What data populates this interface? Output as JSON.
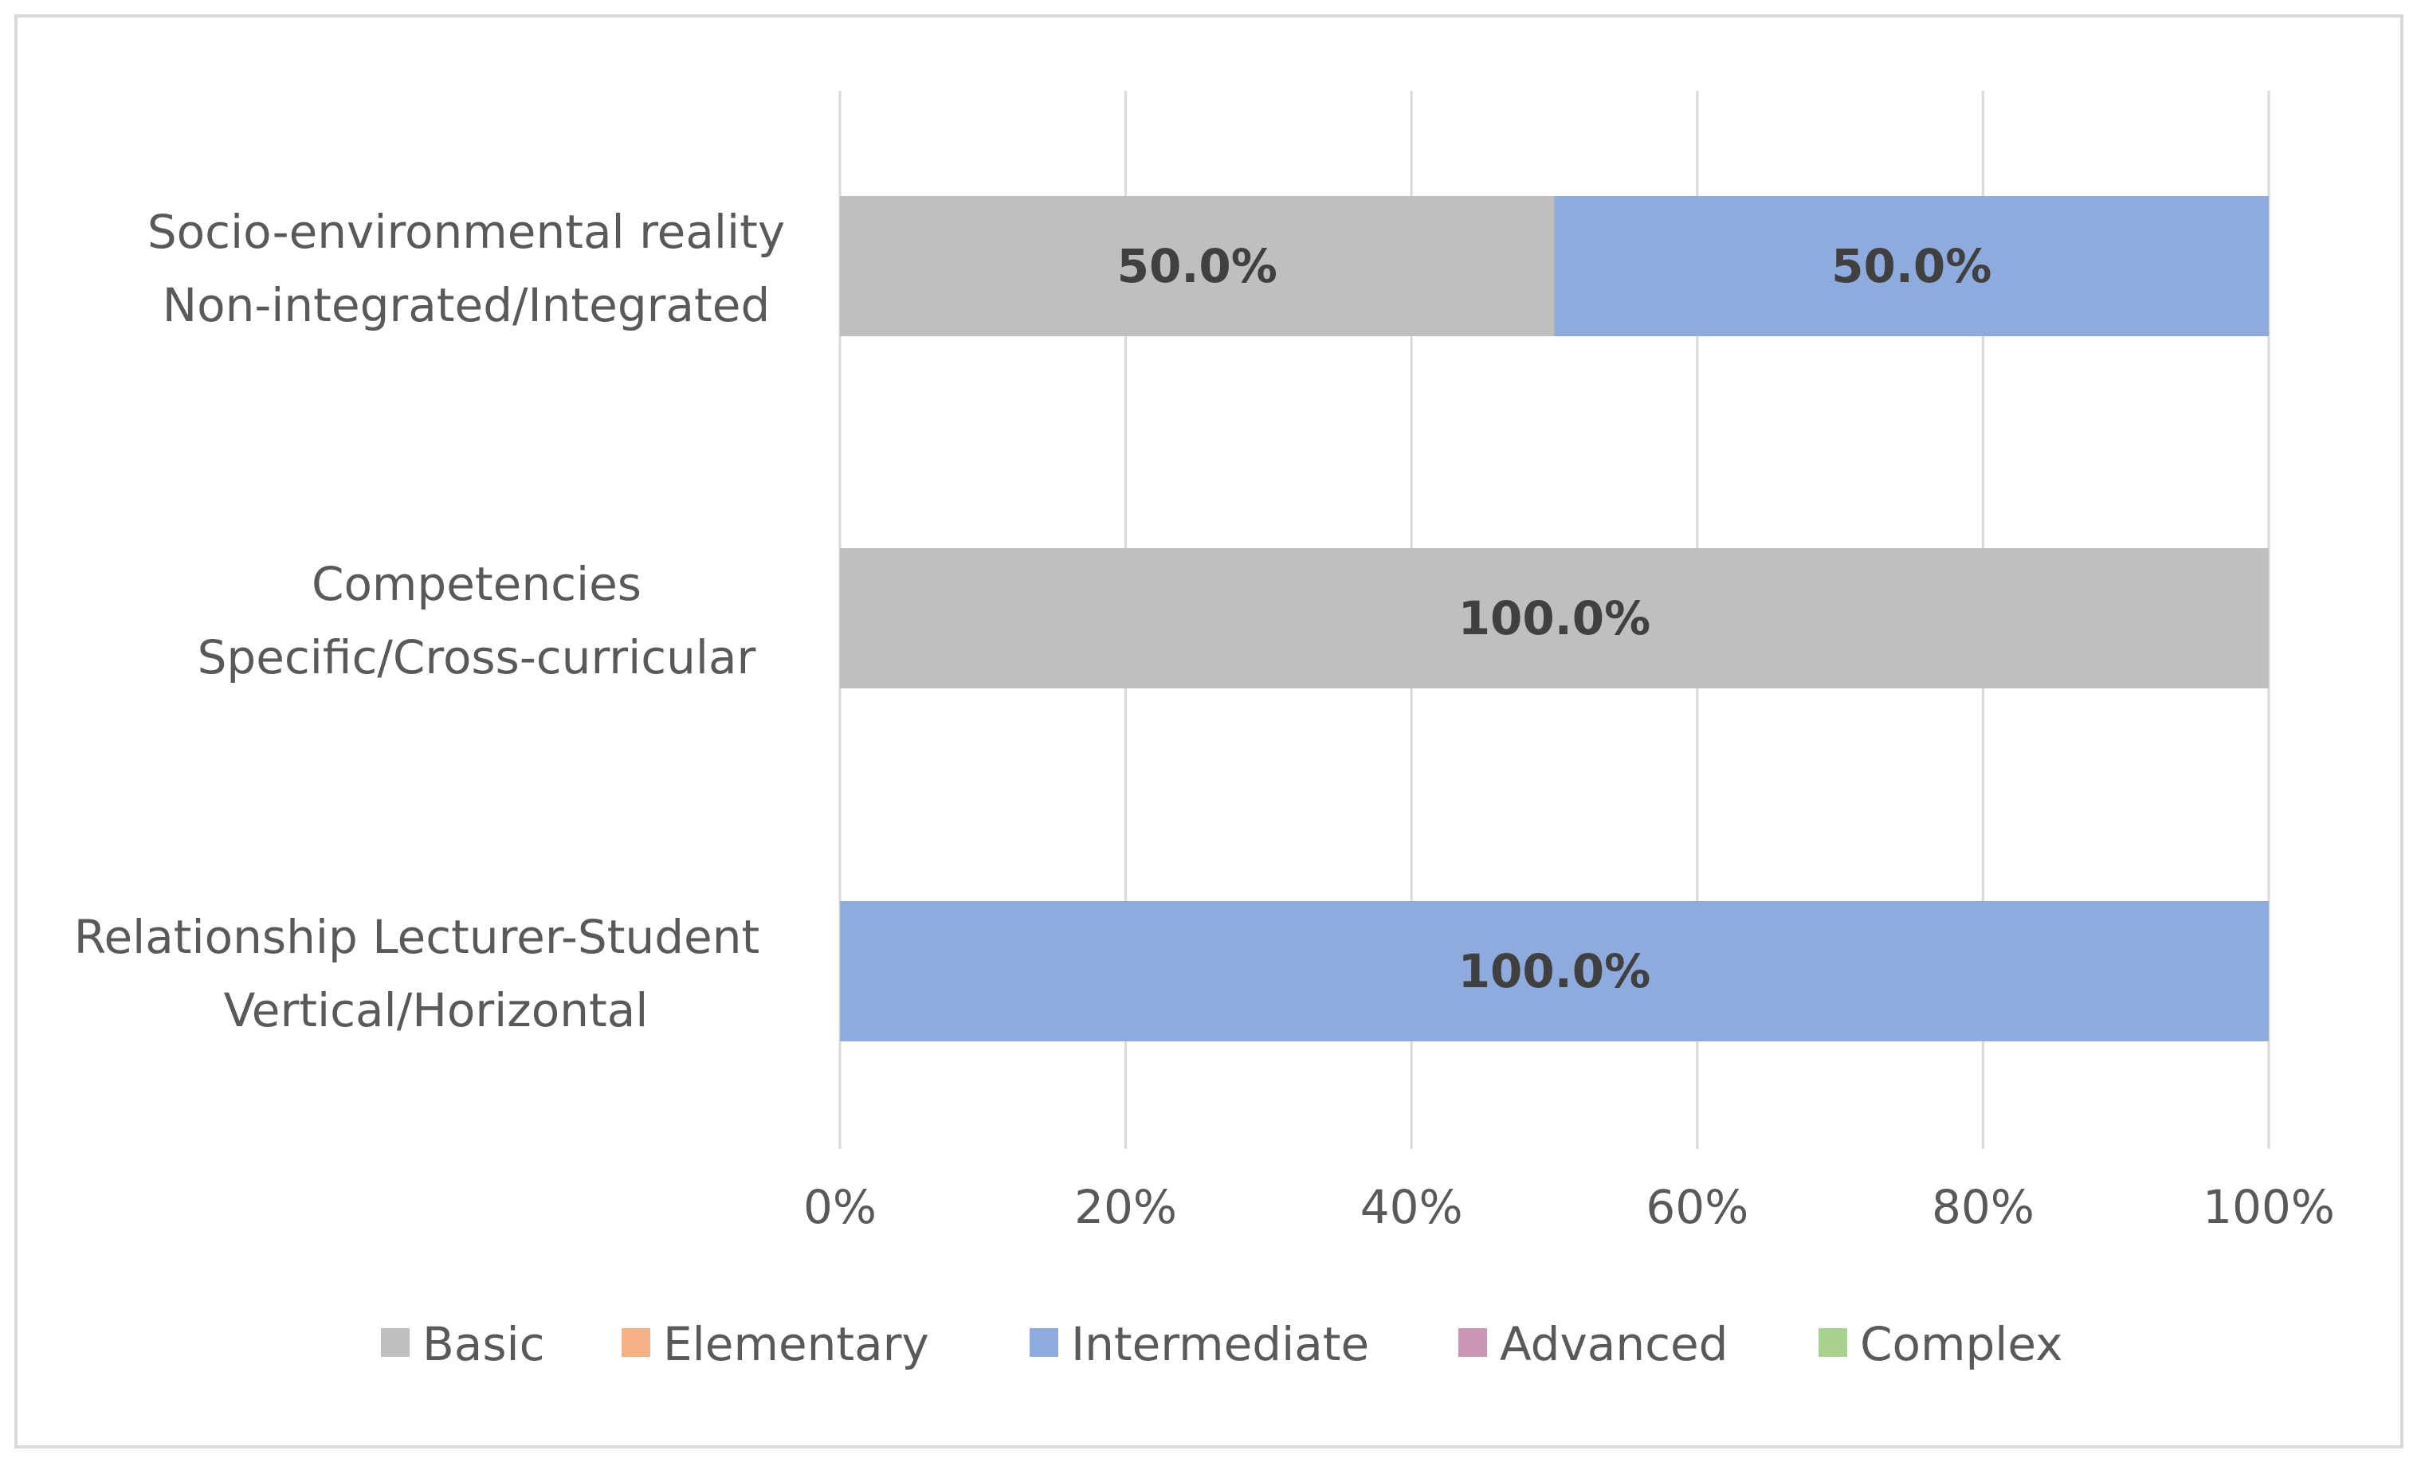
{
  "chart_data": {
    "type": "bar",
    "orientation": "horizontal",
    "stacked": "percent",
    "title": "",
    "xlabel": "",
    "ylabel": "",
    "xlim": [
      0,
      100
    ],
    "x_ticks": [
      "0%",
      "20%",
      "40%",
      "60%",
      "80%",
      "100%"
    ],
    "grid": "vertical",
    "legend_position": "bottom",
    "categories": [
      [
        "Socio-environmental reality",
        "Non-integrated/Integrated"
      ],
      [
        "Competencies",
        "Specific/Cross-curricular"
      ],
      [
        "Relationship Lecturer-Student",
        "Vertical/Horizontal"
      ]
    ],
    "series": [
      {
        "name": "Basic",
        "color": "#bfbfbf",
        "values": [
          50.0,
          100.0,
          0
        ]
      },
      {
        "name": "Elementary",
        "color": "#f4b183",
        "values": [
          0,
          0,
          0
        ]
      },
      {
        "name": "Intermediate",
        "color": "#8faadc",
        "values": [
          50.0,
          0,
          100.0
        ]
      },
      {
        "name": "Advanced",
        "color": "#c997b4",
        "values": [
          0,
          0,
          0
        ]
      },
      {
        "name": "Complex",
        "color": "#a9d18e",
        "values": [
          0,
          0,
          0
        ]
      }
    ],
    "data_labels": [
      [
        {
          "series": "Basic",
          "text": "50.0%"
        },
        {
          "series": "Intermediate",
          "text": "50.0%"
        }
      ],
      [
        {
          "series": "Basic",
          "text": "100.0%"
        }
      ],
      [
        {
          "series": "Intermediate",
          "text": "100.0%"
        }
      ]
    ],
    "colors": {
      "grid": "#d9d9d9",
      "text": "#595959",
      "data_label": "#404040"
    }
  }
}
